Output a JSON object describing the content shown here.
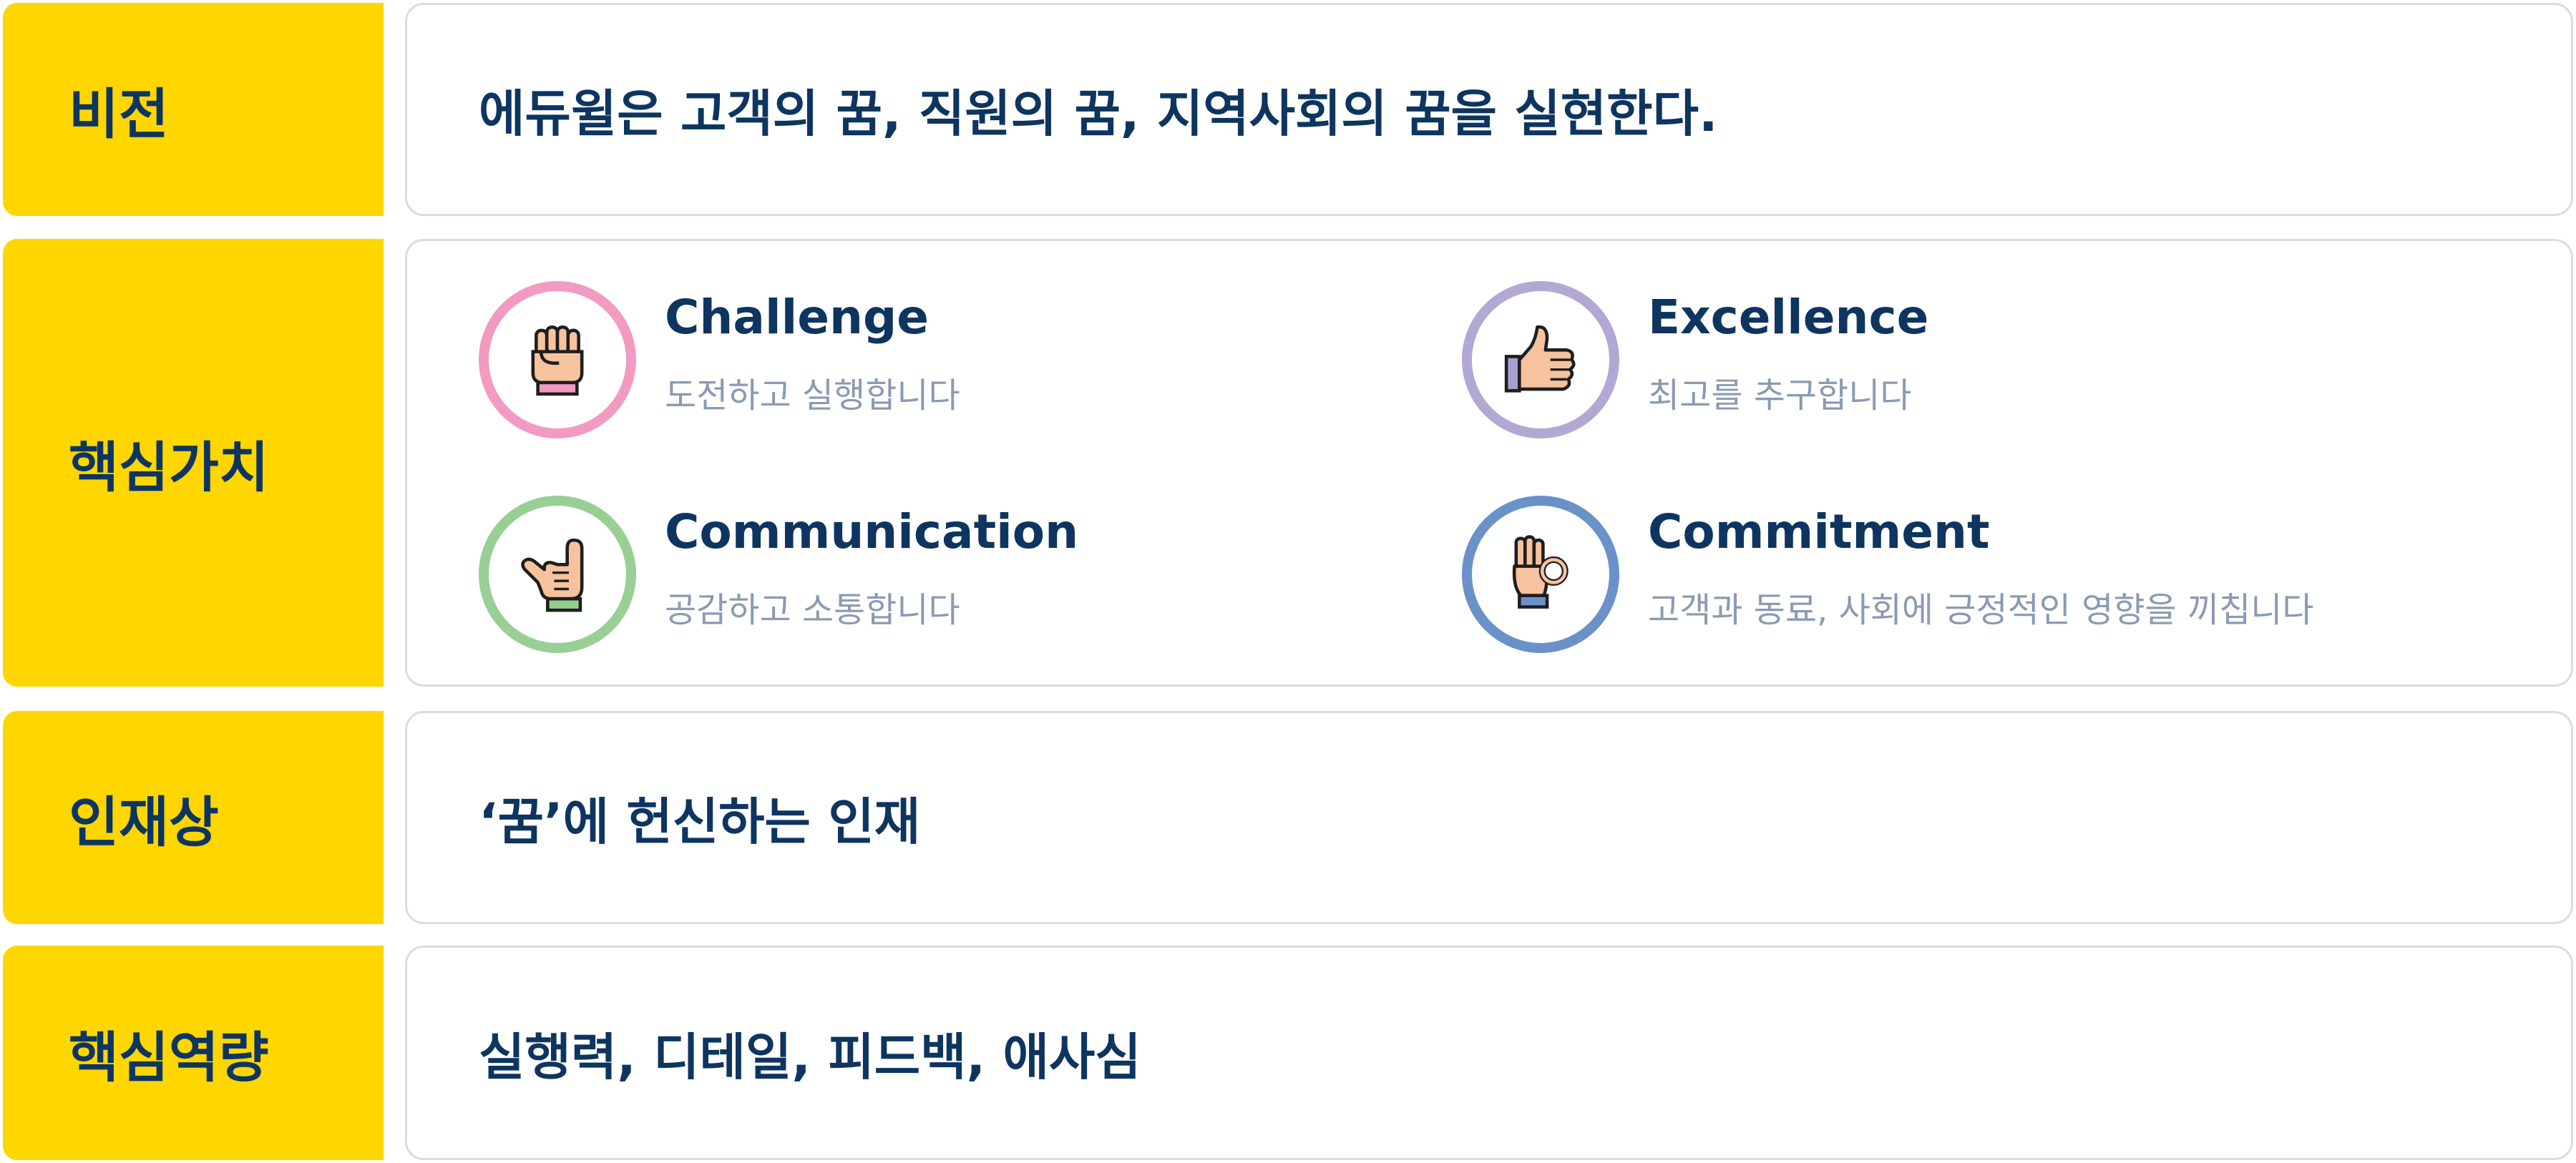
{
  "rows": [
    {
      "label": "비전",
      "text": "에듀윌은 고객의 꿈, 직원의 꿈, 지역사회의 꿈을 실현한다."
    },
    {
      "label": "핵심가치"
    },
    {
      "label": "인재상",
      "text": "‘꿈’에 헌신하는 인재"
    },
    {
      "label": "핵심역량",
      "text": "실행력, 디테일, 피드백, 애사심"
    }
  ],
  "core_values": [
    {
      "title": "Challenge",
      "desc": "도전하고 실행합니다",
      "icon": "fist-icon",
      "ring_color": "#f29ac2",
      "cuff_color": "#f29ac2"
    },
    {
      "title": "Excellence",
      "desc": "최고를 추구합니다",
      "icon": "thumbs-up-icon",
      "ring_color": "#b3a8d4",
      "cuff_color": "#a79ed2"
    },
    {
      "title": "Communication",
      "desc": "공감하고 소통합니다",
      "icon": "call-me-hand-icon",
      "ring_color": "#99cf94",
      "cuff_color": "#8fd08b"
    },
    {
      "title": "Commitment",
      "desc": "고객과 동료, 사회에 긍정적인 영향을 끼칩니다",
      "icon": "ok-hand-icon",
      "ring_color": "#6a92c8",
      "cuff_color": "#6a92c8"
    }
  ]
}
